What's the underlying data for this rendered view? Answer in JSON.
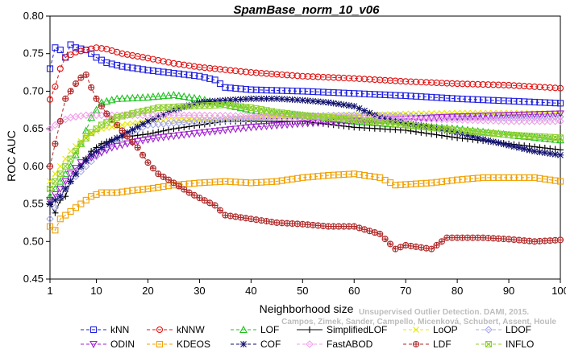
{
  "chart_data": {
    "type": "line",
    "title": "SpamBase_norm_10_v06",
    "xlabel": "Neighborhood size",
    "ylabel": "ROC AUC",
    "xlim": [
      1,
      100
    ],
    "ylim": [
      0.45,
      0.8
    ],
    "x_ticks": [
      1,
      10,
      20,
      30,
      40,
      50,
      60,
      70,
      80,
      90,
      100
    ],
    "y_ticks": [
      0.45,
      0.5,
      0.55,
      0.6,
      0.65,
      0.7,
      0.75,
      0.8
    ],
    "y_tick_labels": [
      "0.45",
      "0.50",
      "0.55",
      "0.60",
      "0.65",
      "0.70",
      "0.75",
      "0.80"
    ],
    "credit": "Campos, Zimek, Sander, Campello, Micenková, Schubert, Assent, Houle",
    "credit_partial": "Unsupervised Outlier Detection. DAMI, 2015.",
    "legend_position": "bottom",
    "series": [
      {
        "name": "kNN",
        "color": "#1f1fe0",
        "marker": "square",
        "dash": "4,3",
        "points": [
          [
            1,
            0.73
          ],
          [
            2,
            0.758
          ],
          [
            3,
            0.755
          ],
          [
            4,
            0.745
          ],
          [
            5,
            0.762
          ],
          [
            6,
            0.758
          ],
          [
            8,
            0.755
          ],
          [
            10,
            0.745
          ],
          [
            12,
            0.738
          ],
          [
            15,
            0.733
          ],
          [
            20,
            0.728
          ],
          [
            25,
            0.724
          ],
          [
            30,
            0.72
          ],
          [
            33,
            0.715
          ],
          [
            35,
            0.705
          ],
          [
            40,
            0.702
          ],
          [
            50,
            0.7
          ],
          [
            60,
            0.697
          ],
          [
            70,
            0.694
          ],
          [
            80,
            0.69
          ],
          [
            90,
            0.687
          ],
          [
            100,
            0.684
          ]
        ]
      },
      {
        "name": "kNNW",
        "color": "#e01010",
        "marker": "circle",
        "dash": "4,3",
        "points": [
          [
            1,
            0.689
          ],
          [
            2,
            0.706
          ],
          [
            3,
            0.73
          ],
          [
            4,
            0.745
          ],
          [
            6,
            0.752
          ],
          [
            8,
            0.755
          ],
          [
            10,
            0.758
          ],
          [
            12,
            0.756
          ],
          [
            15,
            0.75
          ],
          [
            20,
            0.744
          ],
          [
            25,
            0.737
          ],
          [
            30,
            0.732
          ],
          [
            40,
            0.725
          ],
          [
            50,
            0.72
          ],
          [
            60,
            0.717
          ],
          [
            70,
            0.713
          ],
          [
            80,
            0.71
          ],
          [
            90,
            0.708
          ],
          [
            100,
            0.704
          ]
        ]
      },
      {
        "name": "LOF",
        "color": "#20c020",
        "marker": "triangle-up",
        "dash": "4,3",
        "points": [
          [
            1,
            0.56
          ],
          [
            3,
            0.58
          ],
          [
            5,
            0.6
          ],
          [
            7,
            0.63
          ],
          [
            9,
            0.665
          ],
          [
            11,
            0.685
          ],
          [
            14,
            0.69
          ],
          [
            20,
            0.692
          ],
          [
            25,
            0.695
          ],
          [
            30,
            0.69
          ],
          [
            35,
            0.682
          ],
          [
            40,
            0.675
          ],
          [
            45,
            0.67
          ],
          [
            50,
            0.668
          ],
          [
            60,
            0.66
          ],
          [
            70,
            0.655
          ],
          [
            80,
            0.65
          ],
          [
            90,
            0.642
          ],
          [
            100,
            0.635
          ]
        ]
      },
      {
        "name": "SimplifiedLOF",
        "color": "#000000",
        "marker": "plus",
        "dash": "",
        "points": [
          [
            1,
            0.549
          ],
          [
            2,
            0.538
          ],
          [
            3,
            0.555
          ],
          [
            4,
            0.56
          ],
          [
            5,
            0.58
          ],
          [
            7,
            0.6
          ],
          [
            9,
            0.62
          ],
          [
            11,
            0.63
          ],
          [
            14,
            0.638
          ],
          [
            20,
            0.643
          ],
          [
            25,
            0.65
          ],
          [
            30,
            0.655
          ],
          [
            35,
            0.66
          ],
          [
            40,
            0.66
          ],
          [
            50,
            0.66
          ],
          [
            60,
            0.652
          ],
          [
            70,
            0.648
          ],
          [
            80,
            0.638
          ],
          [
            90,
            0.63
          ],
          [
            100,
            0.622
          ]
        ]
      },
      {
        "name": "LoOP",
        "color": "#e8e800",
        "marker": "x",
        "dash": "4,3",
        "points": [
          [
            1,
            0.58
          ],
          [
            3,
            0.6
          ],
          [
            5,
            0.62
          ],
          [
            8,
            0.64
          ],
          [
            11,
            0.65
          ],
          [
            15,
            0.655
          ],
          [
            20,
            0.66
          ],
          [
            30,
            0.662
          ],
          [
            40,
            0.665
          ],
          [
            50,
            0.667
          ],
          [
            60,
            0.668
          ],
          [
            70,
            0.67
          ],
          [
            80,
            0.671
          ],
          [
            90,
            0.671
          ],
          [
            100,
            0.67
          ]
        ]
      },
      {
        "name": "LDOF",
        "color": "#a8a8e8",
        "marker": "diamond",
        "dash": "4,3",
        "points": [
          [
            1,
            0.53
          ],
          [
            3,
            0.56
          ],
          [
            5,
            0.58
          ],
          [
            8,
            0.6
          ],
          [
            11,
            0.62
          ],
          [
            15,
            0.64
          ],
          [
            20,
            0.655
          ],
          [
            30,
            0.66
          ],
          [
            40,
            0.664
          ],
          [
            50,
            0.667
          ],
          [
            60,
            0.668
          ],
          [
            70,
            0.667
          ],
          [
            80,
            0.665
          ],
          [
            90,
            0.665
          ],
          [
            100,
            0.666
          ]
        ]
      },
      {
        "name": "ODIN",
        "color": "#a020d0",
        "marker": "triangle-down",
        "dash": "4,3",
        "points": [
          [
            1,
            0.555
          ],
          [
            3,
            0.57
          ],
          [
            5,
            0.59
          ],
          [
            7,
            0.605
          ],
          [
            10,
            0.615
          ],
          [
            13,
            0.625
          ],
          [
            17,
            0.632
          ],
          [
            22,
            0.638
          ],
          [
            27,
            0.642
          ],
          [
            32,
            0.646
          ],
          [
            40,
            0.652
          ],
          [
            50,
            0.657
          ],
          [
            60,
            0.66
          ],
          [
            70,
            0.663
          ],
          [
            80,
            0.666
          ],
          [
            90,
            0.668
          ],
          [
            100,
            0.67
          ]
        ]
      },
      {
        "name": "KDEOS",
        "color": "#f0a000",
        "marker": "square",
        "dash": "4,3",
        "points": [
          [
            1,
            0.52
          ],
          [
            2,
            0.515
          ],
          [
            3,
            0.53
          ],
          [
            4,
            0.535
          ],
          [
            5,
            0.54
          ],
          [
            7,
            0.55
          ],
          [
            9,
            0.56
          ],
          [
            11,
            0.565
          ],
          [
            14,
            0.565
          ],
          [
            17,
            0.568
          ],
          [
            20,
            0.57
          ],
          [
            25,
            0.575
          ],
          [
            30,
            0.578
          ],
          [
            35,
            0.58
          ],
          [
            40,
            0.578
          ],
          [
            45,
            0.58
          ],
          [
            50,
            0.585
          ],
          [
            55,
            0.588
          ],
          [
            60,
            0.59
          ],
          [
            65,
            0.585
          ],
          [
            68,
            0.575
          ],
          [
            75,
            0.578
          ],
          [
            80,
            0.582
          ],
          [
            85,
            0.585
          ],
          [
            90,
            0.585
          ],
          [
            95,
            0.585
          ],
          [
            100,
            0.58
          ]
        ]
      },
      {
        "name": "COF",
        "color": "#10106e",
        "marker": "star",
        "dash": "4,3",
        "points": [
          [
            1,
            0.55
          ],
          [
            3,
            0.56
          ],
          [
            5,
            0.58
          ],
          [
            7,
            0.6
          ],
          [
            9,
            0.615
          ],
          [
            12,
            0.63
          ],
          [
            16,
            0.645
          ],
          [
            20,
            0.66
          ],
          [
            25,
            0.675
          ],
          [
            30,
            0.685
          ],
          [
            35,
            0.688
          ],
          [
            40,
            0.69
          ],
          [
            45,
            0.69
          ],
          [
            50,
            0.688
          ],
          [
            55,
            0.685
          ],
          [
            60,
            0.68
          ],
          [
            65,
            0.665
          ],
          [
            70,
            0.657
          ],
          [
            75,
            0.652
          ],
          [
            80,
            0.645
          ],
          [
            85,
            0.636
          ],
          [
            90,
            0.628
          ],
          [
            95,
            0.62
          ],
          [
            100,
            0.615
          ]
        ]
      },
      {
        "name": "FastABOD",
        "color": "#f0a0e8",
        "marker": "diamond",
        "dash": "4,3",
        "points": [
          [
            1,
            0.65
          ],
          [
            3,
            0.66
          ],
          [
            5,
            0.665
          ],
          [
            8,
            0.668
          ],
          [
            12,
            0.668
          ],
          [
            20,
            0.668
          ],
          [
            30,
            0.668
          ],
          [
            40,
            0.667
          ],
          [
            50,
            0.665
          ],
          [
            60,
            0.665
          ],
          [
            70,
            0.664
          ],
          [
            80,
            0.662
          ],
          [
            90,
            0.66
          ],
          [
            100,
            0.66
          ]
        ]
      },
      {
        "name": "LDF",
        "color": "#b02828",
        "marker": "circle-plus",
        "dash": "4,3",
        "points": [
          [
            1,
            0.6
          ],
          [
            2,
            0.63
          ],
          [
            3,
            0.66
          ],
          [
            4,
            0.69
          ],
          [
            5,
            0.7
          ],
          [
            6,
            0.71
          ],
          [
            7,
            0.718
          ],
          [
            8,
            0.722
          ],
          [
            9,
            0.705
          ],
          [
            10,
            0.69
          ],
          [
            11,
            0.68
          ],
          [
            12,
            0.67
          ],
          [
            14,
            0.655
          ],
          [
            16,
            0.64
          ],
          [
            18,
            0.625
          ],
          [
            20,
            0.605
          ],
          [
            22,
            0.59
          ],
          [
            25,
            0.578
          ],
          [
            28,
            0.565
          ],
          [
            30,
            0.558
          ],
          [
            33,
            0.548
          ],
          [
            35,
            0.535
          ],
          [
            40,
            0.53
          ],
          [
            45,
            0.525
          ],
          [
            50,
            0.523
          ],
          [
            55,
            0.52
          ],
          [
            60,
            0.52
          ],
          [
            65,
            0.51
          ],
          [
            68,
            0.49
          ],
          [
            70,
            0.495
          ],
          [
            75,
            0.49
          ],
          [
            78,
            0.505
          ],
          [
            80,
            0.505
          ],
          [
            85,
            0.505
          ],
          [
            90,
            0.503
          ],
          [
            95,
            0.5
          ],
          [
            100,
            0.502
          ]
        ]
      },
      {
        "name": "INFLO",
        "color": "#90d030",
        "marker": "square-x",
        "dash": "4,3",
        "points": [
          [
            1,
            0.57
          ],
          [
            3,
            0.59
          ],
          [
            5,
            0.61
          ],
          [
            7,
            0.63
          ],
          [
            9,
            0.645
          ],
          [
            11,
            0.655
          ],
          [
            14,
            0.665
          ],
          [
            18,
            0.672
          ],
          [
            22,
            0.678
          ],
          [
            28,
            0.68
          ],
          [
            35,
            0.682
          ],
          [
            40,
            0.678
          ],
          [
            45,
            0.672
          ],
          [
            50,
            0.668
          ],
          [
            60,
            0.662
          ],
          [
            70,
            0.655
          ],
          [
            80,
            0.648
          ],
          [
            90,
            0.642
          ],
          [
            100,
            0.638
          ]
        ]
      }
    ]
  }
}
